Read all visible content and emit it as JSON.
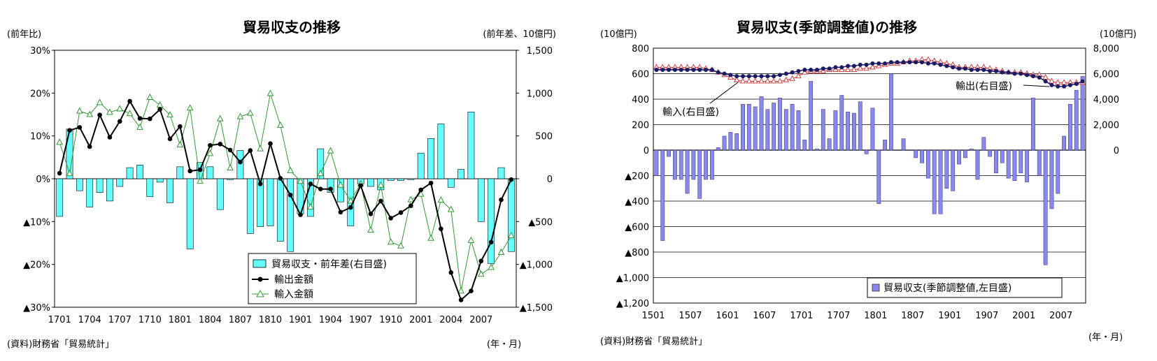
{
  "chart_data": [
    {
      "type": "bar+line",
      "title": "貿易収支の推移",
      "left_unit": "(前年比)",
      "right_unit": "(前年差、10億円)",
      "x_unit": "(年・月)",
      "source": "(資料)財務省「貿易統計」",
      "x_tick_labels": [
        "1701",
        "1704",
        "1707",
        "1710",
        "1801",
        "1804",
        "1807",
        "1810",
        "1901",
        "1904",
        "1907",
        "1910",
        "2001",
        "2004",
        "2007"
      ],
      "left_axis": {
        "ticks": [
          30,
          20,
          10,
          0,
          -10,
          -20,
          -30
        ],
        "labels": [
          "30%",
          "20%",
          "10%",
          "0%",
          "▲10%",
          "▲20%",
          "▲30%"
        ],
        "ylim": [
          -30,
          30
        ]
      },
      "right_axis": {
        "ticks": [
          1500,
          1000,
          500,
          0,
          -500,
          -1000,
          -1500
        ],
        "labels": [
          "1,500",
          "1,000",
          "500",
          "0",
          "▲500",
          "▲1,000",
          "▲1,500"
        ],
        "ylim": [
          -1500,
          1500
        ]
      },
      "months": [
        "2017-01",
        "2017-02",
        "2017-03",
        "2017-04",
        "2017-05",
        "2017-06",
        "2017-07",
        "2017-08",
        "2017-09",
        "2017-10",
        "2017-11",
        "2017-12",
        "2018-01",
        "2018-02",
        "2018-03",
        "2018-04",
        "2018-05",
        "2018-06",
        "2018-07",
        "2018-08",
        "2018-09",
        "2018-10",
        "2018-11",
        "2018-12",
        "2019-01",
        "2019-02",
        "2019-03",
        "2019-04",
        "2019-05",
        "2019-06",
        "2019-07",
        "2019-08",
        "2019-09",
        "2019-10",
        "2019-11",
        "2019-12",
        "2020-01",
        "2020-02",
        "2020-03",
        "2020-04",
        "2020-05",
        "2020-06",
        "2020-07",
        "2020-08",
        "2020-09",
        "2020-10"
      ],
      "series": [
        {
          "name": "貿易収支・前年差(右目盛)",
          "kind": "bar",
          "axis": "right",
          "color": "#66ffff",
          "values": [
            -440,
            580,
            -140,
            -330,
            -160,
            -260,
            -90,
            130,
            160,
            -210,
            -40,
            -280,
            140,
            -820,
            190,
            140,
            -360,
            -10,
            330,
            -640,
            -560,
            -550,
            -730,
            -850,
            -410,
            -440,
            350,
            -160,
            -270,
            -550,
            -60,
            -90,
            -130,
            -20,
            -20,
            -10,
            300,
            470,
            640,
            -100,
            110,
            780,
            -500,
            -990,
            130,
            -850
          ]
        },
        {
          "name": "輸出金額",
          "kind": "line",
          "axis": "left",
          "color": "#000000",
          "values": [
            1.3,
            11.3,
            12.0,
            7.5,
            14.9,
            9.7,
            13.4,
            18.1,
            14.1,
            14.0,
            16.2,
            9.3,
            12.2,
            1.8,
            2.1,
            7.8,
            8.1,
            6.7,
            3.9,
            6.6,
            -1.2,
            8.2,
            0.1,
            -3.8,
            -8.4,
            -1.2,
            -2.4,
            -2.4,
            -7.8,
            -6.7,
            -1.6,
            -8.2,
            -5.2,
            -9.2,
            -7.9,
            -6.3,
            -2.6,
            -1.0,
            -11.7,
            -21.9,
            -28.3,
            -26.2,
            -19.2,
            -14.8,
            -4.9,
            -0.2
          ]
        },
        {
          "name": "輸入金額",
          "kind": "line",
          "axis": "left",
          "color": "#339933",
          "values": [
            8.5,
            1.2,
            15.8,
            15.0,
            17.8,
            15.5,
            16.3,
            15.2,
            12.0,
            19.0,
            17.2,
            14.9,
            7.9,
            16.5,
            -0.6,
            5.9,
            14.0,
            2.5,
            14.5,
            15.3,
            7.0,
            19.9,
            12.5,
            1.9,
            -0.6,
            -6.6,
            1.2,
            6.5,
            -1.5,
            -5.2,
            -1.2,
            -12.0,
            -1.5,
            -14.8,
            -15.7,
            -4.9,
            -3.6,
            -13.9,
            -5.0,
            -7.2,
            -26.2,
            -14.4,
            -22.3,
            -20.7,
            -17.2,
            -13.3
          ]
        }
      ]
    },
    {
      "type": "bar+line",
      "title": "貿易収支(季節調整値)の推移",
      "left_unit": "(10億円)",
      "right_unit": "(10億円)",
      "x_unit": "(年・月)",
      "source": "(資料)財務省「貿易統計」",
      "x_tick_labels": [
        "1501",
        "1507",
        "1601",
        "1607",
        "1701",
        "1707",
        "1801",
        "1807",
        "1901",
        "1907",
        "2001",
        "2007"
      ],
      "left_axis": {
        "ticks": [
          800,
          600,
          400,
          200,
          0,
          -200,
          -400,
          -600,
          -800,
          -1000,
          -1200
        ],
        "labels": [
          "800",
          "600",
          "400",
          "200",
          "0",
          "▲200",
          "▲400",
          "▲600",
          "▲800",
          "▲1,000",
          "▲1,200"
        ],
        "ylim": [
          -1200,
          800
        ]
      },
      "right_axis": {
        "ticks": [
          8000,
          6000,
          4000,
          2000,
          0
        ],
        "labels": [
          "8,000",
          "6,000",
          "4,000",
          "2,000",
          "0"
        ],
        "ylim": [
          -12000,
          8000
        ]
      },
      "annotations": [
        "輸入(右目盛)",
        "輸出(右目盛)"
      ],
      "months_from": "2015-01",
      "months_to": "2020-10",
      "series": [
        {
          "name": "貿易収支(季節調整値,左目盛)",
          "kind": "bar",
          "axis": "left",
          "color": "#8888ee",
          "values": [
            -200,
            -710,
            -50,
            -230,
            -230,
            -340,
            -230,
            -380,
            -230,
            -230,
            20,
            110,
            140,
            130,
            360,
            360,
            340,
            420,
            320,
            370,
            410,
            320,
            360,
            310,
            80,
            540,
            10,
            320,
            90,
            310,
            430,
            300,
            290,
            380,
            -30,
            330,
            -420,
            80,
            600,
            0,
            90,
            0,
            -60,
            -100,
            -220,
            -500,
            -500,
            -300,
            -320,
            -110,
            -60,
            10,
            -230,
            100,
            -50,
            -180,
            -100,
            -220,
            -240,
            -180,
            -250,
            410,
            -200,
            -900,
            -460,
            -340,
            110,
            360,
            470,
            580
          ]
        },
        {
          "name": "輸出",
          "kind": "line",
          "axis": "right",
          "color": "#1a1a66",
          "values": [
            6300,
            6300,
            6300,
            6300,
            6300,
            6300,
            6300,
            6300,
            6300,
            6300,
            6100,
            6000,
            5900,
            5800,
            5800,
            5800,
            5800,
            5800,
            5800,
            5800,
            5900,
            6000,
            6100,
            6200,
            6300,
            6300,
            6300,
            6400,
            6400,
            6500,
            6500,
            6600,
            6600,
            6700,
            6700,
            6800,
            6800,
            6800,
            6900,
            6900,
            6900,
            6900,
            6900,
            6900,
            6800,
            6800,
            6700,
            6600,
            6500,
            6400,
            6400,
            6300,
            6300,
            6300,
            6200,
            6200,
            6100,
            6100,
            6000,
            6000,
            5900,
            5800,
            5700,
            5400,
            5100,
            5000,
            5000,
            5100,
            5200,
            5400
          ]
        },
        {
          "name": "輸入",
          "kind": "line",
          "axis": "right",
          "color": "#cc3333",
          "values": [
            6500,
            6500,
            6500,
            6500,
            6500,
            6500,
            6500,
            6500,
            6400,
            6300,
            6100,
            5900,
            5700,
            5500,
            5400,
            5400,
            5400,
            5400,
            5400,
            5400,
            5400,
            5500,
            5600,
            5800,
            6100,
            6200,
            6200,
            6200,
            6300,
            6300,
            6300,
            6300,
            6300,
            6400,
            6400,
            6500,
            6600,
            6700,
            6800,
            6800,
            6900,
            7000,
            7000,
            7100,
            7100,
            7000,
            6900,
            6800,
            6700,
            6500,
            6500,
            6500,
            6500,
            6500,
            6400,
            6300,
            6200,
            6100,
            6100,
            6100,
            6000,
            5900,
            5900,
            5700,
            5400,
            5300,
            5300,
            5300,
            5300,
            5300
          ]
        }
      ]
    }
  ]
}
